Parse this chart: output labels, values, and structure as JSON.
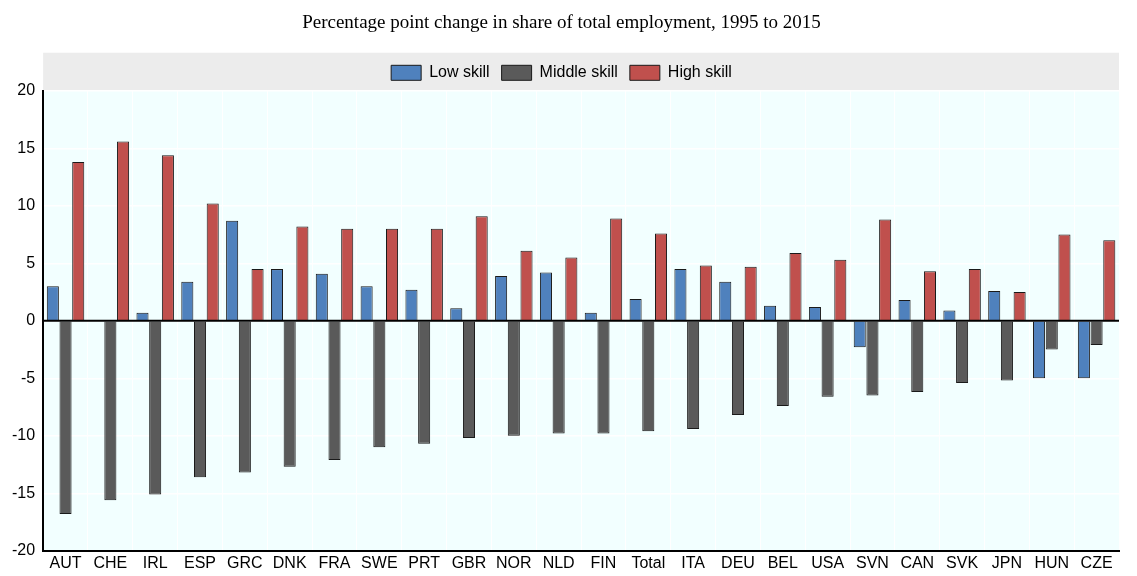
{
  "chart_data": {
    "type": "bar",
    "title": "Percentage point change in share of total employment, 1995 to 2015",
    "categories": [
      "AUT",
      "CHE",
      "IRL",
      "ESP",
      "GRC",
      "DNK",
      "FRA",
      "SWE",
      "PRT",
      "GBR",
      "NOR",
      "NLD",
      "FIN",
      "Total",
      "ITA",
      "DEU",
      "BEL",
      "USA",
      "SVN",
      "CAN",
      "SVK",
      "JPN",
      "HUN",
      "CZE"
    ],
    "series": [
      {
        "name": "Low skill",
        "color": "#4f81bd",
        "values": [
          3.0,
          0,
          0.7,
          3.4,
          8.7,
          4.5,
          4.1,
          3.0,
          2.7,
          1.1,
          3.9,
          4.2,
          0.7,
          1.9,
          4.5,
          3.4,
          1.3,
          1.2,
          -2.3,
          1.8,
          0.9,
          2.6,
          -5.0,
          -5.0
        ]
      },
      {
        "name": "Middle skill",
        "color": "#5a5a5a",
        "values": [
          -16.8,
          -15.6,
          -15.1,
          -13.6,
          -13.2,
          -12.7,
          -12.1,
          -11.0,
          -10.7,
          -10.2,
          -10.0,
          -9.8,
          -9.8,
          -9.6,
          -9.4,
          -8.2,
          -7.4,
          -6.6,
          -6.5,
          -6.2,
          -5.4,
          -5.2,
          -2.5,
          -2.1
        ]
      },
      {
        "name": "High skill",
        "color": "#c0504d",
        "values": [
          13.8,
          15.6,
          14.4,
          10.2,
          4.5,
          8.2,
          8.0,
          8.0,
          8.0,
          9.1,
          6.1,
          5.5,
          8.9,
          7.6,
          4.8,
          4.7,
          5.9,
          5.3,
          8.8,
          4.3,
          4.5,
          2.5,
          7.5,
          7.0
        ]
      }
    ],
    "ylim": [
      -20,
      20
    ],
    "yticks": [
      -20,
      -15,
      -10,
      -5,
      0,
      5,
      10,
      15,
      20
    ],
    "grid": true,
    "legend": "top"
  }
}
